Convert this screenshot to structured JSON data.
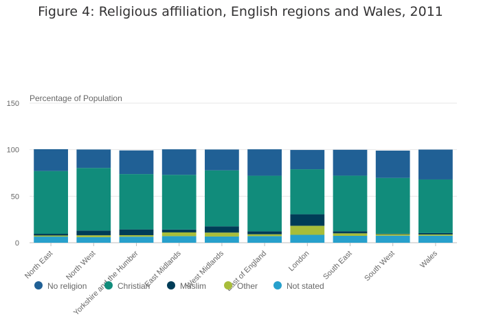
{
  "chart_data": {
    "type": "bar",
    "stacked": true,
    "title": "Figure 4: Religious affiliation, English regions and Wales, 2011",
    "ylabel": "Percentage of Population",
    "xlabel": "",
    "ylim": [
      0,
      150
    ],
    "yticks": [
      0,
      50,
      100,
      150
    ],
    "grid": true,
    "legend_position": "bottom-left",
    "categories": [
      "North East",
      "North West",
      "Yorkshire and the Humber",
      "East Midlands",
      "West Midlands",
      "East of England",
      "London",
      "South East",
      "South West",
      "Wales"
    ],
    "series": [
      {
        "name": "Not stated",
        "color": "#27a0cc",
        "values": [
          6.6,
          6.0,
          6.5,
          7.1,
          6.7,
          7.1,
          8.5,
          7.4,
          7.6,
          7.6
        ]
      },
      {
        "name": "Other",
        "color": "#a8bd3a",
        "values": [
          1.2,
          2.0,
          1.6,
          4.0,
          4.2,
          2.0,
          9.7,
          2.7,
          1.6,
          1.3
        ]
      },
      {
        "name": "Muslim",
        "color": "#003c57",
        "values": [
          1.8,
          5.1,
          6.2,
          3.1,
          6.7,
          3.2,
          12.4,
          2.3,
          0.5,
          1.5
        ]
      },
      {
        "name": "Christian",
        "color": "#118c7b",
        "values": [
          67.5,
          67.3,
          59.5,
          58.8,
          60.2,
          59.7,
          48.4,
          59.7,
          60.0,
          57.6
        ]
      },
      {
        "name": "No religion",
        "color": "#206095",
        "values": [
          23.4,
          19.8,
          25.4,
          27.4,
          22.4,
          28.4,
          20.7,
          27.8,
          29.3,
          32.1
        ]
      }
    ],
    "legend": [
      "No religion",
      "Christian",
      "Muslim",
      "Other",
      "Not stated"
    ]
  }
}
